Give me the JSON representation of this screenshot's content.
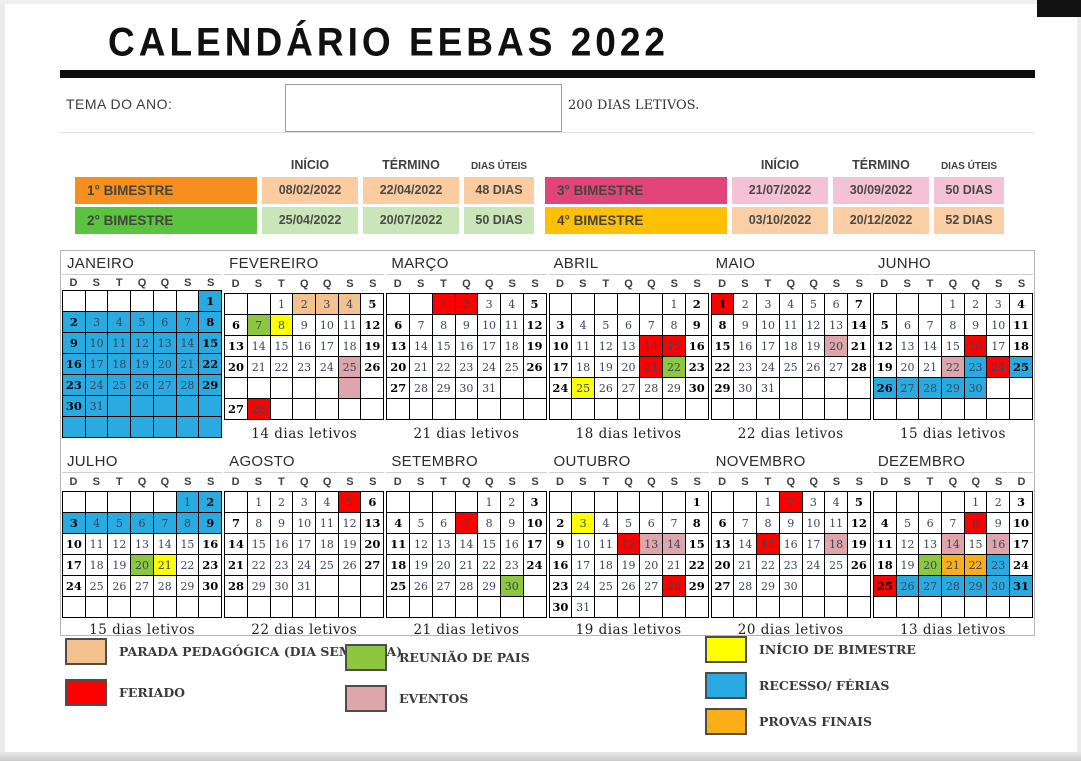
{
  "page": {
    "title": "CALENDÁRIO  EEBAS  2022"
  },
  "tema": {
    "label": "TEMA DO ANO:",
    "value": "",
    "total_dias": "200 DIAS LETIVOS."
  },
  "bimester_headers": {
    "inicio": "INÍCIO",
    "termino": "TÉRMINO",
    "dias_uteis": "DIAS ÚTEIS"
  },
  "bimesters": [
    {
      "label": "1° BIMESTRE",
      "inicio": "08/02/2022",
      "termino": "22/04/2022",
      "dias": "48 DIAS",
      "color": "#F78F1E",
      "cell_color": "#FACCA0",
      "table": "left"
    },
    {
      "label": "2° BIMESTRE",
      "inicio": "25/04/2022",
      "termino": "20/07/2022",
      "dias": "50 DIAS",
      "color": "#5BC43E",
      "cell_color": "#C8E6B8",
      "table": "left"
    },
    {
      "label": "3° BIMESTRE",
      "inicio": "21/07/2022",
      "termino": "30/09/2022",
      "dias": "50 DIAS",
      "color": "#E04478",
      "cell_color": "#F4C2D4",
      "table": "right"
    },
    {
      "label": "4° BIMESTRE",
      "inicio": "03/10/2022",
      "termino": "20/12/2022",
      "dias": "52 DIAS",
      "color": "#FDC005",
      "cell_color": "#FACFA5",
      "table": "right"
    }
  ],
  "colors": {
    "blue": "#29ABE2",
    "red": "#FB0200",
    "tan": "#F4C28E",
    "green": "#8DC63F",
    "yellow": "#FFFF00",
    "pink": "#DCA6AB",
    "gold": "#FBAE17"
  },
  "weekdays_default": [
    "D",
    "S",
    "T",
    "Q",
    "Q",
    "S",
    "S"
  ],
  "months": [
    {
      "name": "JANEIRO",
      "label": "",
      "rows": [
        [
          "",
          "",
          "",
          "",
          "",
          "",
          "1:blue"
        ],
        [
          "2:blue",
          "3:blue",
          "4:blue",
          "5:blue",
          "6:blue",
          "7:blue",
          "8:blue"
        ],
        [
          "9:blue",
          "10:blue",
          "11:blue",
          "12:blue",
          "13:blue",
          "14:blue",
          "15:blue"
        ],
        [
          "16:blue",
          "17:blue",
          "18:blue",
          "19:blue",
          "20:blue",
          "21:blue",
          "22:blue"
        ],
        [
          "23:blue",
          "24:blue",
          "25:blue",
          "26:blue",
          "27:blue",
          "28:blue",
          "29:blue"
        ],
        [
          "30:blue",
          "31:blue",
          ":blue",
          ":blue",
          ":blue",
          ":blue",
          ":blue"
        ],
        [
          ":blue",
          ":blue",
          ":blue",
          ":blue",
          ":blue",
          ":blue",
          ":blue"
        ]
      ]
    },
    {
      "name": "FEVEREIRO",
      "label": "14 dias letivos",
      "rows": [
        [
          "",
          "",
          "1",
          "2:tan",
          "3:tan",
          "4:tan",
          "5"
        ],
        [
          "6",
          "7:green",
          "8:yellow",
          "9",
          "10",
          "11",
          "12"
        ],
        [
          "13",
          "14",
          "15",
          "16",
          "17",
          "18",
          "19"
        ],
        [
          "20",
          "21",
          "22",
          "23",
          "24",
          "25:pink",
          "26"
        ],
        [
          "",
          "",
          "",
          "",
          "",
          ":pink",
          ""
        ],
        [
          "27",
          "28:red",
          "",
          "",
          "",
          "",
          ""
        ]
      ]
    },
    {
      "name": "MARÇO",
      "label": "21 dias letivos",
      "rows": [
        [
          "",
          "",
          "1:red",
          "2:red",
          "3",
          "4",
          "5"
        ],
        [
          "6",
          "7",
          "8",
          "9",
          "10",
          "11",
          "12"
        ],
        [
          "13",
          "14",
          "15",
          "16",
          "17",
          "18",
          "19"
        ],
        [
          "20",
          "21",
          "22",
          "23",
          "24",
          "25",
          "26"
        ],
        [
          "27",
          "28",
          "29",
          "30",
          "31",
          "",
          ""
        ],
        [
          "",
          "",
          "",
          "",
          "",
          "",
          ""
        ]
      ]
    },
    {
      "name": "ABRIL",
      "label": "18 dias letivos",
      "rows": [
        [
          "",
          "",
          "",
          "",
          "",
          "1",
          "2"
        ],
        [
          "3",
          "4",
          "5",
          "6",
          "7",
          "8",
          "9"
        ],
        [
          "10",
          "11",
          "12",
          "13",
          "14:red",
          "15:red",
          "16"
        ],
        [
          "17",
          "18",
          "19",
          "20",
          "21:red",
          "22:green",
          "23"
        ],
        [
          "24",
          "25:yellow",
          "26",
          "27",
          "28",
          "29",
          "30"
        ],
        [
          "",
          "",
          "",
          "",
          "",
          "",
          ""
        ]
      ]
    },
    {
      "name": "MAIO",
      "label": "22 dias letivos",
      "rows": [
        [
          "1:red",
          "2",
          "3",
          "4",
          "5",
          "6",
          "7"
        ],
        [
          "8",
          "9",
          "10",
          "11",
          "12",
          "13",
          "14"
        ],
        [
          "15",
          "16",
          "17",
          "18",
          "19",
          "20:pink",
          "21"
        ],
        [
          "22",
          "23",
          "24",
          "25",
          "26",
          "27",
          "28"
        ],
        [
          "29",
          "30",
          "31",
          "",
          "",
          "",
          ""
        ],
        [
          "",
          "",
          "",
          "",
          "",
          "",
          ""
        ]
      ]
    },
    {
      "name": "JUNHO",
      "label": "15  dias letivos",
      "rows": [
        [
          "",
          "",
          "",
          "1",
          "2",
          "3",
          "4"
        ],
        [
          "5",
          "6",
          "7",
          "8",
          "9",
          "10",
          "11"
        ],
        [
          "12",
          "13",
          "14",
          "15",
          "16:red",
          "17",
          "18"
        ],
        [
          "19",
          "20",
          "21",
          "22:pink",
          "23:blue",
          "24:red",
          "25:blue"
        ],
        [
          "26:blue",
          "27:blue",
          "28:blue",
          "29:blue",
          "30:blue",
          "",
          ""
        ],
        [
          "",
          "",
          "",
          "",
          "",
          "",
          ""
        ]
      ]
    },
    {
      "name": "JULHO",
      "label": "15 dias letivos",
      "rows": [
        [
          "",
          "",
          "",
          "",
          "",
          "1:blue",
          "2:blue"
        ],
        [
          "3:blue",
          "4:blue",
          "5:blue",
          "6:blue",
          "7:blue",
          "8:blue",
          "9:blue"
        ],
        [
          "10",
          "11",
          "12",
          "13",
          "14",
          "15",
          "16"
        ],
        [
          "17",
          "18",
          "19",
          "20:green",
          "21:yellow",
          "22",
          "23"
        ],
        [
          "24",
          "25",
          "26",
          "27",
          "28",
          "29",
          "30"
        ],
        [
          "",
          "",
          "",
          "",
          "",
          "",
          ""
        ]
      ]
    },
    {
      "name": "AGOSTO",
      "label": "22 dias letivos",
      "rows": [
        [
          "",
          "1",
          "2",
          "3",
          "4",
          "5:red",
          "6"
        ],
        [
          "7",
          "8",
          "9",
          "10",
          "11",
          "12",
          "13"
        ],
        [
          "14",
          "15",
          "16",
          "17",
          "18",
          "19",
          "20"
        ],
        [
          "21",
          "22",
          "23",
          "24",
          "25",
          "26",
          "27"
        ],
        [
          "28",
          "29",
          "30",
          "31",
          "",
          "",
          ""
        ],
        [
          "",
          "",
          "",
          "",
          "",
          "",
          ""
        ]
      ]
    },
    {
      "name": "SETEMBRO",
      "label": "21 dias letivos",
      "rows": [
        [
          "",
          "",
          "",
          "",
          "1",
          "2",
          "3"
        ],
        [
          "4",
          "5",
          "6",
          "7:red",
          "8",
          "9",
          "10"
        ],
        [
          "11",
          "12",
          "13",
          "14",
          "15",
          "16",
          "17"
        ],
        [
          "18",
          "19",
          "20",
          "21",
          "22",
          "23",
          "24"
        ],
        [
          "25",
          "26",
          "27",
          "28",
          "29",
          "30:green",
          ""
        ],
        [
          "",
          "",
          "",
          "",
          "",
          "",
          ""
        ]
      ]
    },
    {
      "name": "OUTUBRO",
      "label": "19 dias letivos",
      "rows": [
        [
          "",
          "",
          "",
          "",
          "",
          "",
          "1"
        ],
        [
          "2",
          "3:yellow",
          "4",
          "5",
          "6",
          "7",
          "8"
        ],
        [
          "9",
          "10",
          "11",
          "12:red",
          "13:pink",
          "14:pink",
          "15"
        ],
        [
          "16",
          "17",
          "18",
          "19",
          "20",
          "21",
          "22"
        ],
        [
          "23",
          "24",
          "25",
          "26",
          "27",
          "28:red",
          "29"
        ],
        [
          "30",
          "31",
          "",
          "",
          "",
          "",
          ""
        ]
      ]
    },
    {
      "name": "NOVEMBRO",
      "label": "20 dias letivos",
      "rows": [
        [
          "",
          "",
          "1",
          "2:red",
          "3",
          "4",
          "5"
        ],
        [
          "6",
          "7",
          "8",
          "9",
          "10",
          "11",
          "12"
        ],
        [
          "13",
          "14",
          "15:red",
          "16",
          "17",
          "18:pink",
          "19"
        ],
        [
          "20",
          "21",
          "22",
          "23",
          "24",
          "25",
          "26"
        ],
        [
          "27",
          "28",
          "29",
          "30",
          "",
          "",
          ""
        ],
        [
          "",
          "",
          "",
          "",
          "",
          "",
          ""
        ]
      ]
    },
    {
      "name": "DEZEMBRO",
      "label": "13 dias letivos",
      "weekdays": [
        "D",
        "S",
        "T",
        "Q",
        "Q",
        "S",
        "D"
      ],
      "rows": [
        [
          "",
          "",
          "",
          "",
          "1",
          "2",
          "3"
        ],
        [
          "4",
          "5",
          "6",
          "7",
          "8:red",
          "9",
          "10"
        ],
        [
          "11",
          "12",
          "13",
          "14:pink",
          "15",
          "16:pink",
          "17"
        ],
        [
          "18",
          "19",
          "20:green",
          "21:gold",
          "22:gold",
          "23:blue",
          "24"
        ],
        [
          "25:red",
          "26:blue",
          "27:blue",
          "28:blue",
          "29:blue",
          "30:blue",
          "31:blue"
        ],
        [
          "",
          "",
          "",
          "",
          "",
          "",
          ""
        ]
      ]
    }
  ],
  "legend": [
    {
      "items": [
        {
          "color": "tan",
          "label": "PARADA PEDAGÓGICA (DIA SEM AULA)"
        },
        {
          "color": "red",
          "label": "FERIADO"
        }
      ]
    },
    {
      "items": [
        {
          "color": "green",
          "label": "REUNIÃO DE PAIS"
        },
        {
          "color": "pink",
          "label": "EVENTOS"
        }
      ]
    },
    {
      "items": [
        {
          "color": "yellow",
          "label": "INÍCIO DE BIMESTRE"
        },
        {
          "color": "blue",
          "label": "RECESSO/ FÉRIAS"
        },
        {
          "color": "gold",
          "label": "PROVAS FINAIS"
        }
      ]
    }
  ]
}
